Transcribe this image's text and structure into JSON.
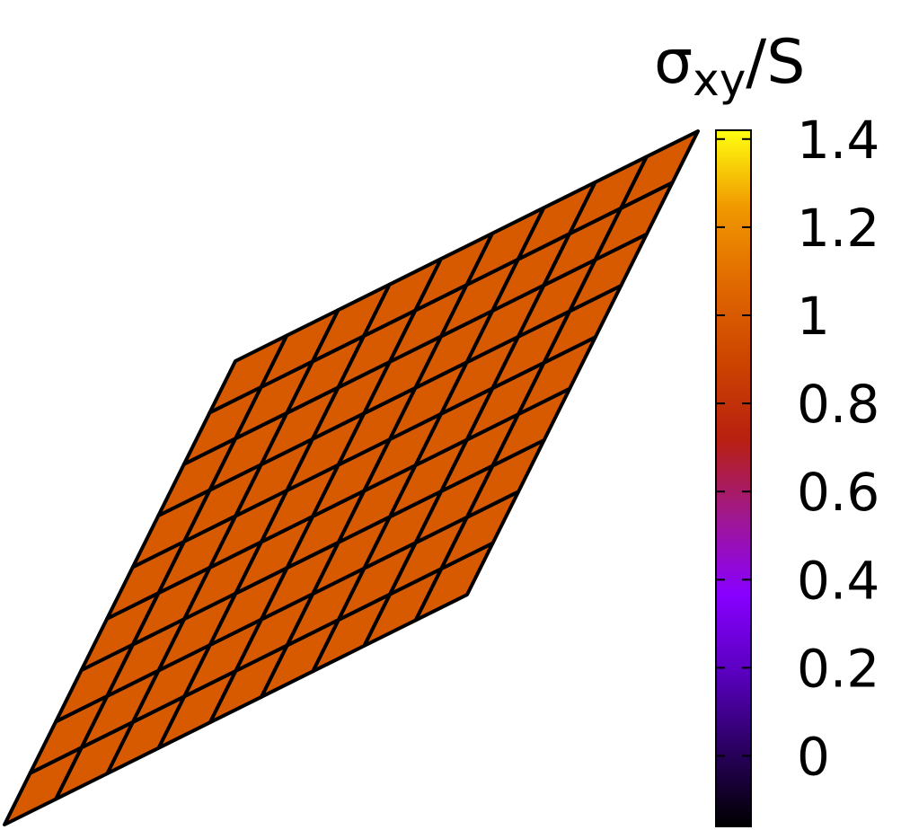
{
  "chart_data": {
    "type": "heatmap",
    "title_parts": [
      "σ",
      "xy",
      "/S"
    ],
    "z": [
      [
        1,
        1,
        1,
        1,
        1,
        1,
        1,
        1,
        1
      ],
      [
        1,
        1,
        1,
        1,
        1,
        1,
        1,
        1,
        1
      ],
      [
        1,
        1,
        1,
        1,
        1,
        1,
        1,
        1,
        1
      ],
      [
        1,
        1,
        1,
        1,
        1,
        1,
        1,
        1,
        1
      ],
      [
        1,
        1,
        1,
        1,
        1,
        1,
        1,
        1,
        1
      ],
      [
        1,
        1,
        1,
        1,
        1,
        1,
        1,
        1,
        1
      ],
      [
        1,
        1,
        1,
        1,
        1,
        1,
        1,
        1,
        1
      ],
      [
        1,
        1,
        1,
        1,
        1,
        1,
        1,
        1,
        1
      ],
      [
        1,
        1,
        1,
        1,
        1,
        1,
        1,
        1,
        1
      ]
    ],
    "clim": [
      -0.16,
      1.42
    ],
    "cticks": [
      0,
      0.2,
      0.4,
      0.6,
      0.8,
      1,
      1.2,
      1.4
    ],
    "colormap": [
      "#000000",
      "#2a0060",
      "#5a00c0",
      "#8800ff",
      "#a01890",
      "#b82010",
      "#cc4400",
      "#e06800",
      "#f09800",
      "#ffff10"
    ],
    "edge_color": "#000000"
  }
}
